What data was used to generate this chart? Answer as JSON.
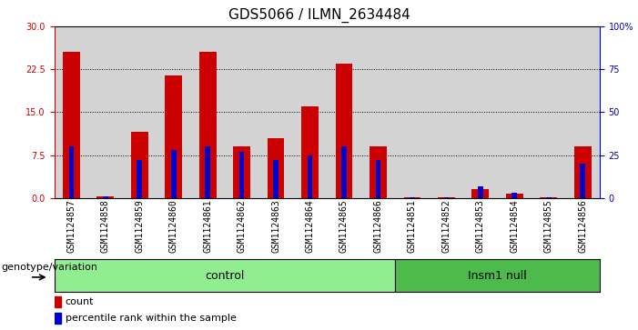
{
  "title": "GDS5066 / ILMN_2634484",
  "samples": [
    "GSM1124857",
    "GSM1124858",
    "GSM1124859",
    "GSM1124860",
    "GSM1124861",
    "GSM1124862",
    "GSM1124863",
    "GSM1124864",
    "GSM1124865",
    "GSM1124866",
    "GSM1124851",
    "GSM1124852",
    "GSM1124853",
    "GSM1124854",
    "GSM1124855",
    "GSM1124856"
  ],
  "counts": [
    25.5,
    0.3,
    11.5,
    21.5,
    25.5,
    9.0,
    10.5,
    16.0,
    23.5,
    9.0,
    0.2,
    0.2,
    1.5,
    0.8,
    0.2,
    9.0
  ],
  "percentiles": [
    30,
    1,
    22,
    28,
    30,
    27,
    22,
    25,
    30,
    22,
    0.5,
    0.5,
    7,
    3,
    0.5,
    20
  ],
  "groups": [
    {
      "label": "control",
      "start": 0,
      "end": 10,
      "color": "#90EE90"
    },
    {
      "label": "Insm1 null",
      "start": 10,
      "end": 16,
      "color": "#4CBB4C"
    }
  ],
  "ylim_left": [
    0,
    30
  ],
  "ylim_right": [
    0,
    100
  ],
  "yticks_left": [
    0,
    7.5,
    15,
    22.5,
    30
  ],
  "yticks_right": [
    0,
    25,
    50,
    75,
    100
  ],
  "ytick_labels_right": [
    "0",
    "25",
    "50",
    "75",
    "100%"
  ],
  "bar_color": "#CC0000",
  "percentile_color": "#0000CC",
  "plot_bg_color": "#D3D3D3",
  "fig_bg_color": "#FFFFFF",
  "label_count": "count",
  "label_percentile": "percentile rank within the sample",
  "genotype_label": "genotype/variation",
  "title_fontsize": 11,
  "tick_fontsize": 7,
  "legend_fontsize": 8,
  "group_fontsize": 9,
  "genotype_fontsize": 8,
  "bar_width": 0.5,
  "pct_bar_width": 0.15
}
